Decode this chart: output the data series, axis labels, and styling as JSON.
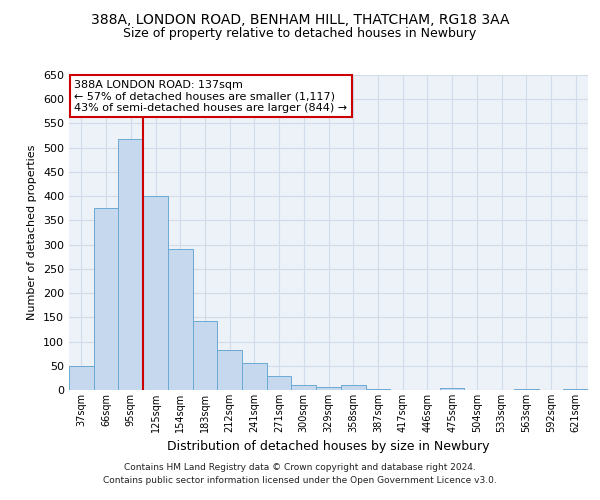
{
  "title1": "388A, LONDON ROAD, BENHAM HILL, THATCHAM, RG18 3AA",
  "title2": "Size of property relative to detached houses in Newbury",
  "xlabel": "Distribution of detached houses by size in Newbury",
  "ylabel": "Number of detached properties",
  "footer1": "Contains HM Land Registry data © Crown copyright and database right 2024.",
  "footer2": "Contains public sector information licensed under the Open Government Licence v3.0.",
  "categories": [
    "37sqm",
    "66sqm",
    "95sqm",
    "125sqm",
    "154sqm",
    "183sqm",
    "212sqm",
    "241sqm",
    "271sqm",
    "300sqm",
    "329sqm",
    "358sqm",
    "387sqm",
    "417sqm",
    "446sqm",
    "475sqm",
    "504sqm",
    "533sqm",
    "563sqm",
    "592sqm",
    "621sqm"
  ],
  "values": [
    50,
    375,
    517,
    400,
    290,
    142,
    82,
    55,
    29,
    11,
    6,
    11,
    2,
    1,
    0,
    5,
    1,
    0,
    2,
    0,
    2
  ],
  "bar_color": "#c5d8ee",
  "bar_edge_color": "#6aaad4",
  "grid_color": "#d0dcea",
  "annotation_box_color": "#ffffff",
  "annotation_box_edge": "#cc0000",
  "vline_color": "#cc0000",
  "vline_x_idx": 2,
  "annotation_text_line1": "388A LONDON ROAD: 137sqm",
  "annotation_text_line2": "← 57% of detached houses are smaller (1,117)",
  "annotation_text_line3": "43% of semi-detached houses are larger (844) →",
  "ylim": [
    0,
    650
  ],
  "yticks": [
    0,
    50,
    100,
    150,
    200,
    250,
    300,
    350,
    400,
    450,
    500,
    550,
    600,
    650
  ],
  "background_color": "#ffffff",
  "plot_bg_color": "#edf2f8"
}
